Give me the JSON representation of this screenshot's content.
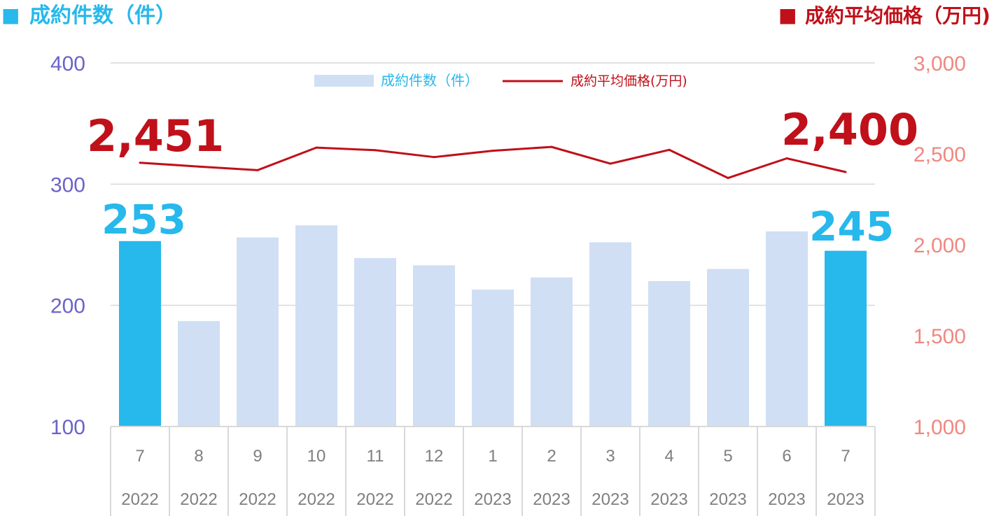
{
  "header": {
    "left_marker": "■",
    "left_title": "成約件数（件）",
    "right_marker": "■",
    "right_title": "成約平均価格（万円)"
  },
  "legend": {
    "bar_label": "成約件数（件）",
    "line_label": "成約平均価格(万円)"
  },
  "colors": {
    "bar": "#d0dff3",
    "bar_highlight": "#27b8ec",
    "line": "#c0101a",
    "left_axis": "#6b63c8",
    "right_axis": "#ef8880",
    "grid": "#d9d9d9",
    "category_text": "#7f7f7f"
  },
  "chart_data": {
    "type": "bar",
    "categories": [
      {
        "month": "7",
        "year": "2022"
      },
      {
        "month": "8",
        "year": "2022"
      },
      {
        "month": "9",
        "year": "2022"
      },
      {
        "month": "10",
        "year": "2022"
      },
      {
        "month": "11",
        "year": "2022"
      },
      {
        "month": "12",
        "year": "2022"
      },
      {
        "month": "1",
        "year": "2023"
      },
      {
        "month": "2",
        "year": "2023"
      },
      {
        "month": "3",
        "year": "2023"
      },
      {
        "month": "4",
        "year": "2023"
      },
      {
        "month": "5",
        "year": "2023"
      },
      {
        "month": "6",
        "year": "2023"
      },
      {
        "month": "7",
        "year": "2023"
      }
    ],
    "series": [
      {
        "name": "成約件数（件）",
        "type": "bar",
        "axis": "left",
        "values": [
          253,
          187,
          256,
          266,
          239,
          233,
          213,
          223,
          252,
          220,
          230,
          261,
          245
        ],
        "highlight": [
          true,
          false,
          false,
          false,
          false,
          false,
          false,
          false,
          false,
          false,
          false,
          false,
          true
        ]
      },
      {
        "name": "成約平均価格(万円)",
        "type": "line",
        "axis": "right",
        "values": [
          2451,
          2430,
          2410,
          2534,
          2520,
          2482,
          2517,
          2538,
          2446,
          2522,
          2367,
          2475,
          2400
        ]
      }
    ],
    "y_left": {
      "min": 100,
      "max": 400,
      "ticks": [
        "100",
        "200",
        "300",
        "400"
      ]
    },
    "y_right": {
      "min": 1000,
      "max": 3000,
      "ticks": [
        "1,000",
        "1,500",
        "2,000",
        "2,500",
        "3,000"
      ]
    },
    "annotations": {
      "price_start": "2,451",
      "price_end": "2,400",
      "count_start": "253",
      "count_end": "245"
    },
    "grid": true,
    "legend_position": "top-center"
  }
}
